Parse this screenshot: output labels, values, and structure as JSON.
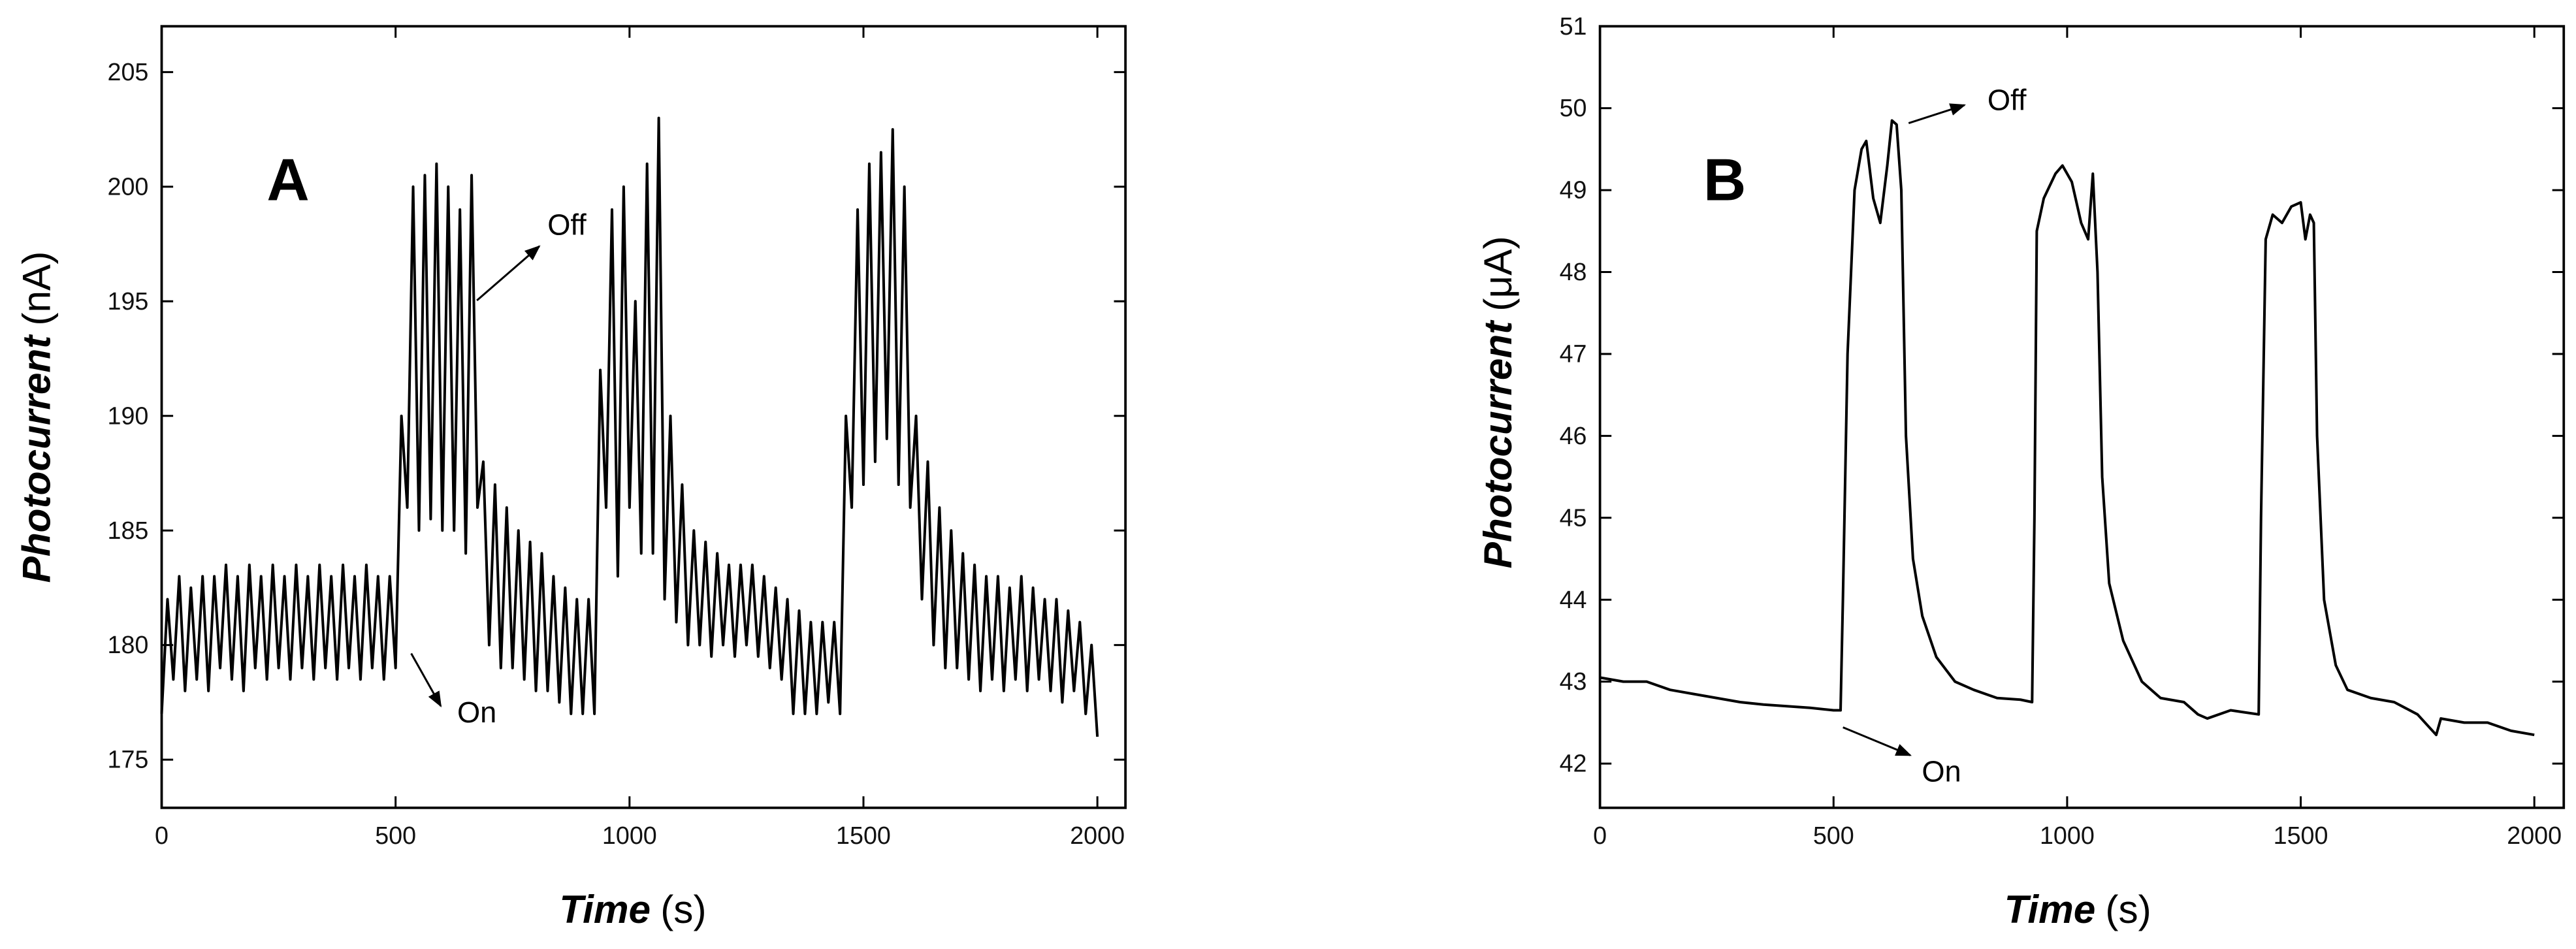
{
  "chart_data": [
    {
      "type": "line",
      "label": "A",
      "color": "#000000",
      "ylabel": "Photocurrent",
      "ylabel_unit": "(nA)",
      "xlabel": "Time",
      "xlabel_unit": "(s)",
      "annotations": [
        "Off",
        "On"
      ],
      "xlim": [
        0,
        2060
      ],
      "ylim": [
        172.9,
        207
      ],
      "xticks": [
        0,
        500,
        1000,
        1500,
        2000
      ],
      "yticks": [
        175,
        180,
        185,
        190,
        195,
        200,
        205
      ],
      "x": [
        0,
        12.5,
        25,
        37.5,
        50,
        62.5,
        75,
        87.5,
        100,
        112.5,
        125,
        137.5,
        150,
        162.5,
        175,
        187.5,
        200,
        212.5,
        225,
        237.5,
        250,
        262.5,
        275,
        287.5,
        300,
        312.5,
        325,
        337.5,
        350,
        362.5,
        375,
        387.5,
        400,
        412.5,
        425,
        437.5,
        450,
        462.5,
        475,
        487.5,
        500,
        512.5,
        525,
        537.5,
        550,
        562.5,
        575,
        587.5,
        600,
        612.5,
        625,
        637.5,
        650,
        662.5,
        675,
        687.5,
        700,
        712.5,
        725,
        737.5,
        750,
        762.5,
        775,
        787.5,
        800,
        812.5,
        825,
        837.5,
        850,
        862.5,
        875,
        887.5,
        900,
        912.5,
        925,
        937.5,
        950,
        962.5,
        975,
        987.5,
        1000,
        1012.5,
        1025,
        1037.5,
        1050,
        1062.5,
        1075,
        1087.5,
        1100,
        1112.5,
        1125,
        1137.5,
        1150,
        1162.5,
        1175,
        1187.5,
        1200,
        1212.5,
        1225,
        1237.5,
        1250,
        1262.5,
        1275,
        1287.5,
        1300,
        1312.5,
        1325,
        1337.5,
        1350,
        1362.5,
        1375,
        1387.5,
        1400,
        1412.5,
        1425,
        1437.5,
        1450,
        1462.5,
        1475,
        1487.5,
        1500,
        1512.5,
        1525,
        1537.5,
        1550,
        1562.5,
        1575,
        1587.5,
        1600,
        1612.5,
        1625,
        1637.5,
        1650,
        1662.5,
        1675,
        1687.5,
        1700,
        1712.5,
        1725,
        1737.5,
        1750,
        1762.5,
        1775,
        1787.5,
        1800,
        1812.5,
        1825,
        1837.5,
        1850,
        1862.5,
        1875,
        1887.5,
        1900,
        1912.5,
        1925,
        1937.5,
        1950,
        1962.5,
        1975,
        1987.5,
        2000
      ],
      "values": [
        177,
        182,
        178.5,
        183,
        178,
        182.5,
        178.5,
        183,
        178,
        183,
        179,
        183.5,
        178.5,
        183,
        178,
        183.5,
        179,
        183,
        178.5,
        183.5,
        179,
        183,
        178.5,
        183.5,
        179,
        183,
        178.5,
        183.5,
        179,
        183,
        178.5,
        183.5,
        179,
        183,
        178.5,
        183.5,
        179,
        183,
        178.5,
        183,
        179,
        190,
        186,
        200,
        185,
        200.5,
        185.5,
        201,
        185,
        200,
        185,
        199,
        184,
        200.5,
        186,
        188,
        180,
        187,
        179,
        186,
        179,
        185,
        178.5,
        184.5,
        178,
        184,
        178,
        183,
        177.5,
        182.5,
        177,
        182,
        177,
        182,
        177,
        192,
        186,
        199,
        183,
        200,
        186,
        195,
        184,
        201,
        184,
        203,
        182,
        190,
        181,
        187,
        180,
        185,
        180,
        184.5,
        179.5,
        184,
        180,
        183.5,
        179.5,
        183.5,
        180,
        183.5,
        179.5,
        183,
        179,
        182.5,
        178.5,
        182,
        177,
        181.5,
        177,
        181,
        177,
        181,
        177.5,
        181,
        177,
        190,
        186,
        199,
        187,
        201,
        188,
        201.5,
        189,
        202.5,
        187,
        200,
        186,
        190,
        182,
        188,
        180,
        186,
        179,
        185,
        179,
        184,
        178.5,
        183.5,
        178,
        183,
        178.5,
        183,
        178,
        182.5,
        178.5,
        183,
        178,
        182.5,
        178.5,
        182,
        178,
        182,
        177.5,
        181.5,
        178,
        181,
        177,
        180,
        176
      ]
    },
    {
      "type": "line",
      "label": "B",
      "color": "#000000",
      "ylabel": "Photocurrent",
      "ylabel_unit": "(μA)",
      "xlabel": "Time",
      "xlabel_unit": "(s)",
      "annotations": [
        "Off",
        "On"
      ],
      "xlim": [
        0,
        2063
      ],
      "ylim": [
        41.46,
        51
      ],
      "xticks": [
        0,
        500,
        1000,
        1500,
        2000
      ],
      "yticks": [
        42,
        43,
        44,
        45,
        46,
        47,
        48,
        49,
        50,
        51
      ],
      "x": [
        0,
        50,
        100,
        150,
        200,
        250,
        300,
        350,
        400,
        450,
        500,
        515,
        520,
        530,
        545,
        560,
        570,
        585,
        600,
        615,
        625,
        635,
        645,
        655,
        670,
        690,
        720,
        760,
        800,
        850,
        900,
        925,
        930,
        935,
        950,
        975,
        990,
        1010,
        1030,
        1045,
        1055,
        1065,
        1075,
        1090,
        1120,
        1160,
        1200,
        1250,
        1280,
        1300,
        1350,
        1410,
        1415,
        1425,
        1440,
        1460,
        1480,
        1500,
        1510,
        1520,
        1528,
        1535,
        1550,
        1575,
        1600,
        1650,
        1700,
        1750,
        1790,
        1800,
        1850,
        1900,
        1950,
        2000
      ],
      "values": [
        43.05,
        43.0,
        43.0,
        42.9,
        42.85,
        42.8,
        42.75,
        42.72,
        42.7,
        42.68,
        42.65,
        42.65,
        44,
        47,
        49,
        49.5,
        49.6,
        48.9,
        48.6,
        49.3,
        49.85,
        49.8,
        49,
        46,
        44.5,
        43.8,
        43.3,
        43.0,
        42.9,
        42.8,
        42.78,
        42.75,
        45,
        48.5,
        48.9,
        49.2,
        49.3,
        49.1,
        48.6,
        48.4,
        49.2,
        48,
        45.5,
        44.2,
        43.5,
        43.0,
        42.8,
        42.75,
        42.6,
        42.55,
        42.65,
        42.6,
        45,
        48.4,
        48.7,
        48.6,
        48.8,
        48.85,
        48.4,
        48.7,
        48.6,
        46,
        44,
        43.2,
        42.9,
        42.8,
        42.75,
        42.6,
        42.35,
        42.55,
        42.5,
        42.5,
        42.4,
        42.35
      ]
    }
  ]
}
